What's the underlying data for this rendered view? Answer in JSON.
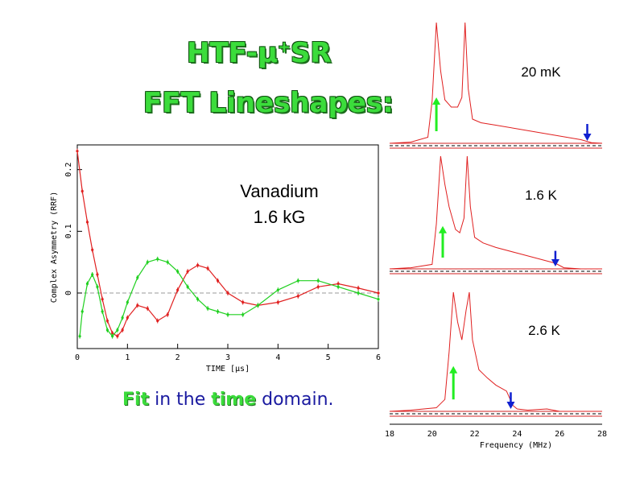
{
  "slide": {
    "title_line1_pre": "HTF-",
    "title_line1_mu": "μ",
    "title_line1_sup": "+",
    "title_line1_post": "SR",
    "title_line2": "FFT Lineshapes:",
    "caption_fit": "Fit",
    "caption_mid": " in the ",
    "caption_time": "time",
    "caption_end": " domain.",
    "sample_label_line1": "Vanadium",
    "sample_label_line2": "1.6 kG"
  },
  "colors": {
    "title_green": "#3bdc3b",
    "caption_blue": "#1a1aa0",
    "red_series": "#e02020",
    "green_series": "#20d020",
    "arrow_green": "#22ee22",
    "arrow_blue": "#1020d0"
  },
  "chart_data": [
    {
      "type": "line",
      "xlabel": "TIME [μs]",
      "ylabel": "Complex Asymmetry (RRF)",
      "xlim": [
        0,
        6
      ],
      "ylim": [
        -0.09,
        0.24
      ],
      "x_ticks": [
        "0",
        "1",
        "2",
        "3",
        "4",
        "5",
        "6"
      ],
      "y_ticks": [
        "0",
        "0.1",
        "0.2"
      ],
      "reference_line": 0,
      "series": [
        {
          "color": "#e02020",
          "x": [
            0,
            0.1,
            0.2,
            0.3,
            0.4,
            0.5,
            0.6,
            0.7,
            0.8,
            0.9,
            1.0,
            1.2,
            1.4,
            1.6,
            1.8,
            2.0,
            2.2,
            2.4,
            2.6,
            2.8,
            3.0,
            3.3,
            3.6,
            4.0,
            4.4,
            4.8,
            5.2,
            5.6,
            6.0
          ],
          "y": [
            0.23,
            0.165,
            0.115,
            0.07,
            0.03,
            -0.01,
            -0.045,
            -0.065,
            -0.07,
            -0.06,
            -0.04,
            -0.02,
            -0.025,
            -0.045,
            -0.035,
            0.005,
            0.035,
            0.045,
            0.04,
            0.02,
            0.0,
            -0.015,
            -0.02,
            -0.015,
            -0.005,
            0.01,
            0.015,
            0.008,
            0.0
          ]
        },
        {
          "color": "#20d020",
          "x": [
            0.05,
            0.1,
            0.2,
            0.3,
            0.4,
            0.5,
            0.6,
            0.7,
            0.8,
            0.9,
            1.0,
            1.2,
            1.4,
            1.6,
            1.8,
            2.0,
            2.2,
            2.4,
            2.6,
            2.8,
            3.0,
            3.3,
            3.6,
            4.0,
            4.4,
            4.8,
            5.2,
            5.6,
            6.0
          ],
          "y": [
            -0.07,
            -0.03,
            0.015,
            0.03,
            0.01,
            -0.03,
            -0.06,
            -0.07,
            -0.06,
            -0.04,
            -0.015,
            0.025,
            0.05,
            0.055,
            0.05,
            0.035,
            0.01,
            -0.01,
            -0.025,
            -0.03,
            -0.035,
            -0.035,
            -0.02,
            0.005,
            0.02,
            0.02,
            0.01,
            0.0,
            -0.01
          ]
        }
      ]
    },
    {
      "type": "line",
      "xlabel": "Frequency (MHz)",
      "xlim": [
        18,
        28
      ],
      "x_ticks": [
        "18",
        "20",
        "22",
        "24",
        "26",
        "28"
      ],
      "panels": [
        {
          "label": "20 mK",
          "green_arrow_mhz": 20.2,
          "blue_arrow_mhz": 27.3,
          "x": [
            18,
            19,
            19.8,
            20.0,
            20.2,
            20.4,
            20.6,
            20.9,
            21.2,
            21.4,
            21.55,
            21.7,
            21.9,
            22.3,
            23,
            24,
            25,
            26,
            27,
            27.5,
            28
          ],
          "y": [
            0,
            0.01,
            0.05,
            0.35,
            1.0,
            0.6,
            0.36,
            0.3,
            0.3,
            0.38,
            1.0,
            0.45,
            0.2,
            0.17,
            0.15,
            0.12,
            0.09,
            0.06,
            0.03,
            0.005,
            0
          ]
        },
        {
          "label": "1.6 K",
          "green_arrow_mhz": 20.5,
          "blue_arrow_mhz": 25.8,
          "x": [
            18,
            19,
            20.0,
            20.2,
            20.4,
            20.6,
            20.8,
            21.1,
            21.3,
            21.5,
            21.65,
            21.8,
            22.0,
            22.4,
            23,
            24,
            25,
            25.8,
            26.2,
            27,
            28
          ],
          "y": [
            0,
            0.01,
            0.04,
            0.4,
            1.0,
            0.75,
            0.55,
            0.35,
            0.32,
            0.45,
            1.0,
            0.55,
            0.28,
            0.23,
            0.19,
            0.14,
            0.09,
            0.05,
            0.01,
            0,
            0
          ]
        },
        {
          "label": "2.6 K",
          "green_arrow_mhz": 21.0,
          "blue_arrow_mhz": 23.7,
          "x": [
            18,
            19,
            20.2,
            20.6,
            20.8,
            21.0,
            21.2,
            21.4,
            21.6,
            21.75,
            21.9,
            22.2,
            22.6,
            23.0,
            23.5,
            23.8,
            24.0,
            24.5,
            25.4,
            26,
            28
          ],
          "y": [
            0,
            0.01,
            0.03,
            0.1,
            0.5,
            1.0,
            0.75,
            0.6,
            0.85,
            1.0,
            0.6,
            0.35,
            0.28,
            0.22,
            0.17,
            0.05,
            0.02,
            0.01,
            0.02,
            0,
            0
          ]
        }
      ]
    }
  ]
}
